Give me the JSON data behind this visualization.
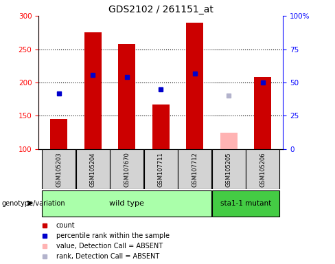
{
  "title": "GDS2102 / 261151_at",
  "samples": [
    "GSM105203",
    "GSM105204",
    "GSM107670",
    "GSM107711",
    "GSM107712",
    "GSM105205",
    "GSM105206"
  ],
  "counts": [
    145,
    275,
    258,
    167,
    290,
    null,
    208
  ],
  "ranks": [
    184,
    211,
    208,
    190,
    213,
    null,
    200
  ],
  "absent_value": [
    null,
    null,
    null,
    null,
    null,
    125,
    null
  ],
  "absent_rank": [
    null,
    null,
    null,
    null,
    null,
    180,
    null
  ],
  "ylim_left": [
    100,
    300
  ],
  "ylim_right": [
    0,
    100
  ],
  "yticks_left": [
    100,
    150,
    200,
    250,
    300
  ],
  "yticks_right": [
    0,
    25,
    50,
    75,
    100
  ],
  "bar_color": "#cc0000",
  "rank_color": "#0000cc",
  "absent_bar_color": "#ffb3b3",
  "absent_rank_color": "#b3b3cc",
  "bg_color": "#d3d3d3",
  "wild_type_color": "#aaffaa",
  "mutant_color": "#44cc44",
  "group_label": "genotype/variation",
  "wild_type_label": "wild type",
  "mutant_label": "sta1-1 mutant",
  "legend_items": [
    {
      "color": "#cc0000",
      "label": "count"
    },
    {
      "color": "#0000cc",
      "label": "percentile rank within the sample"
    },
    {
      "color": "#ffb3b3",
      "label": "value, Detection Call = ABSENT"
    },
    {
      "color": "#b3b3cc",
      "label": "rank, Detection Call = ABSENT"
    }
  ]
}
